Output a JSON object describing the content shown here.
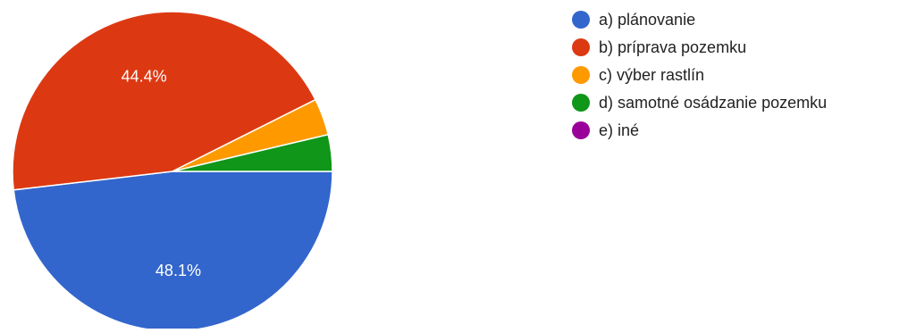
{
  "chart_data": {
    "type": "pie",
    "title": "",
    "legend_position": "right",
    "start_angle_deg": 0,
    "direction": "clockwise",
    "slices": [
      {
        "label": "a) plánovanie",
        "value": 48.1,
        "color": "#3366cc",
        "data_label": "48.1%"
      },
      {
        "label": "b) príprava pozemku",
        "value": 44.4,
        "color": "#dc3912",
        "data_label": "44.4%"
      },
      {
        "label": "c) výber rastlín",
        "value": 3.7,
        "color": "#ff9900",
        "data_label": ""
      },
      {
        "label": "d) samotné osádzanie pozemku",
        "value": 3.7,
        "color": "#109618",
        "data_label": ""
      },
      {
        "label": "e) iné",
        "value": 0,
        "color": "#990099",
        "data_label": ""
      }
    ]
  }
}
